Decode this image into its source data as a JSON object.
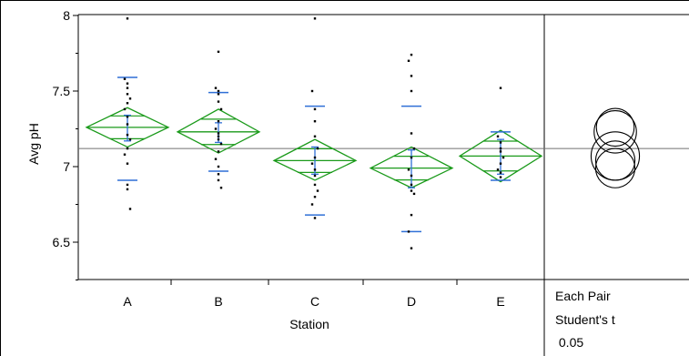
{
  "chart_data": {
    "type": "scatter",
    "subtype": "oneway-means-diamonds",
    "xlabel": "Station",
    "ylabel": "Avg pH",
    "categories": [
      "A",
      "B",
      "C",
      "D",
      "E"
    ],
    "ylim": [
      6.15,
      8.0
    ],
    "yticks": [
      6.5,
      7,
      7.5,
      8
    ],
    "ytick_labels": [
      "6.5",
      "7",
      "7.5",
      "8"
    ],
    "grand_mean": 7.12,
    "groups": [
      {
        "category": "A",
        "mean": 7.26,
        "ci_low": 7.13,
        "ci_high": 7.39,
        "quantile_low": 6.91,
        "quantile_high": 7.59,
        "err_low": 7.17,
        "err_high": 7.34,
        "points": [
          7.98,
          7.58,
          7.55,
          7.52,
          7.48,
          7.45,
          7.42,
          7.38,
          7.33,
          7.28,
          7.21,
          7.18,
          7.12,
          7.08,
          7.02,
          6.88,
          6.85,
          6.72
        ]
      },
      {
        "category": "B",
        "mean": 7.23,
        "ci_low": 7.09,
        "ci_high": 7.38,
        "quantile_low": 6.97,
        "quantile_high": 7.49,
        "err_low": 7.16,
        "err_high": 7.29,
        "points": [
          7.76,
          7.52,
          7.5,
          7.48,
          7.43,
          7.38,
          7.3,
          7.25,
          7.22,
          7.2,
          7.18,
          7.15,
          7.1,
          7.05,
          7.0,
          6.95,
          6.91,
          6.86
        ]
      },
      {
        "category": "C",
        "mean": 7.04,
        "ci_low": 6.91,
        "ci_high": 7.18,
        "quantile_low": 6.68,
        "quantile_high": 7.4,
        "err_low": 6.95,
        "err_high": 7.13,
        "points": [
          7.98,
          7.5,
          7.38,
          7.3,
          7.2,
          7.12,
          7.06,
          7.02,
          6.98,
          6.94,
          6.88,
          6.84,
          6.8,
          6.75,
          6.66
        ]
      },
      {
        "category": "D",
        "mean": 6.99,
        "ci_low": 6.86,
        "ci_high": 7.13,
        "quantile_low": 6.57,
        "quantile_high": 7.4,
        "err_low": 6.86,
        "err_high": 7.11,
        "points": [
          7.74,
          7.7,
          7.6,
          7.5,
          7.22,
          7.12,
          7.06,
          6.98,
          6.94,
          6.88,
          6.84,
          6.82,
          6.68,
          6.57,
          6.46
        ]
      },
      {
        "category": "E",
        "mean": 7.07,
        "ci_low": 6.9,
        "ci_high": 7.24,
        "quantile_low": 6.91,
        "quantile_high": 7.23,
        "err_low": 6.95,
        "err_high": 7.18,
        "points": [
          7.52,
          7.2,
          7.16,
          7.12,
          7.1,
          7.06,
          7.02,
          6.98,
          6.96,
          6.93
        ]
      }
    ],
    "comparison": {
      "circles": [
        {
          "center": 7.26,
          "radius": 0.125
        },
        {
          "center": 7.23,
          "radius": 0.14
        },
        {
          "center": 7.07,
          "radius": 0.16
        },
        {
          "center": 7.04,
          "radius": 0.13
        },
        {
          "center": 6.99,
          "radius": 0.13
        }
      ],
      "labels": [
        "Each Pair",
        "Student's t",
        " 0.05"
      ]
    },
    "colors": {
      "diamond": "#1a9a1a",
      "quantile": "#2f6fd6",
      "points": "#000000",
      "grand_mean": "#707070",
      "frame": "#000000"
    }
  }
}
